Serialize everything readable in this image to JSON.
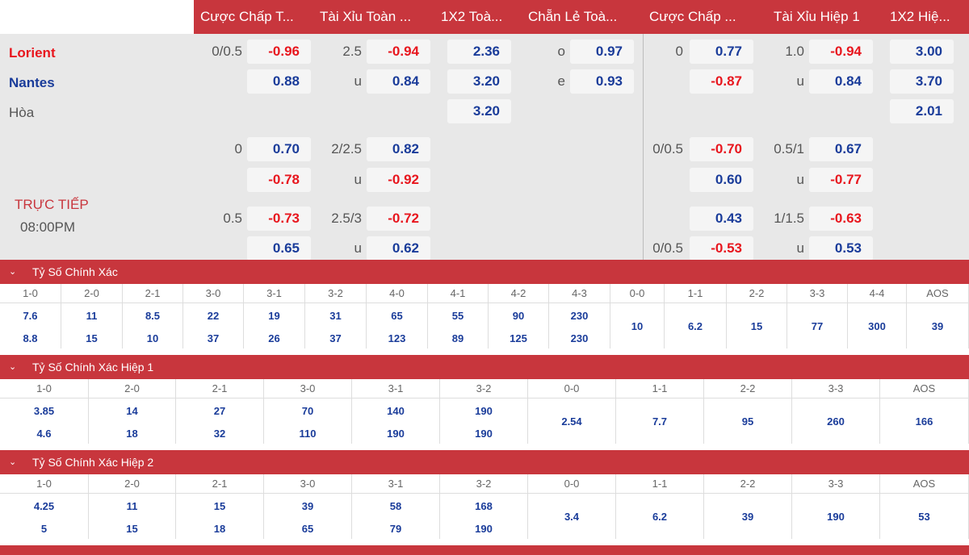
{
  "header": {
    "tabs": [
      {
        "label": "Cược Chấp T..."
      },
      {
        "label": "Tài Xỉu Toàn ..."
      },
      {
        "label": "1X2 Toà..."
      },
      {
        "label": "Chẵn Lẻ Toà..."
      },
      {
        "label": "Cược Chấp ..."
      },
      {
        "label": "Tài Xỉu Hiệp 1"
      },
      {
        "label": "1X2 Hiệ..."
      }
    ]
  },
  "match": {
    "home": "Lorient",
    "away": "Nantes",
    "draw": "Hòa",
    "status": "TRỰC TIẾP",
    "time": "08:00PM",
    "colors": {
      "home": "#e8161e",
      "away": "#1a3c9a",
      "positive": "#1a3c9a",
      "negative": "#e8161e",
      "accent": "#c8363d"
    }
  },
  "odds": {
    "ft_handicap": [
      {
        "line": "0/0.5",
        "home": "-0.96",
        "away": "0.88"
      },
      {
        "line": "0",
        "home": "0.70",
        "away": "-0.78"
      },
      {
        "line": "0.5",
        "home": "-0.73",
        "away": "0.65"
      }
    ],
    "ft_overunder": [
      {
        "line": "2.5",
        "over": "-0.94",
        "under_label": "u",
        "under": "0.84"
      },
      {
        "line": "2/2.5",
        "over": "0.82",
        "under_label": "u",
        "under": "-0.92"
      },
      {
        "line": "2.5/3",
        "over": "-0.72",
        "under_label": "u",
        "under": "0.62"
      }
    ],
    "ft_1x2": {
      "home": "2.36",
      "away": "3.20",
      "draw": "3.20"
    },
    "ft_oddeven": {
      "odd_label": "o",
      "odd": "0.97",
      "even_label": "e",
      "even": "0.93"
    },
    "h1_handicap": [
      {
        "line": "0",
        "home": "0.77",
        "away": "-0.87"
      },
      {
        "line": "0/0.5",
        "home": "-0.70",
        "away": "0.60"
      },
      {
        "line": "",
        "home": "0.43",
        "away": "-0.53",
        "away_line": "0/0.5"
      }
    ],
    "h1_overunder": [
      {
        "line": "1.0",
        "over": "-0.94",
        "under_label": "u",
        "under": "0.84"
      },
      {
        "line": "0.5/1",
        "over": "0.67",
        "under_label": "u",
        "under": "-0.77"
      },
      {
        "line": "1/1.5",
        "over": "-0.63",
        "under_label": "u",
        "under": "0.53"
      }
    ],
    "h1_1x2": {
      "home": "3.00",
      "away": "3.70",
      "draw": "2.01"
    }
  },
  "correct_score": {
    "title": "Tỷ Số Chính Xác",
    "cols": [
      {
        "h": "1-0",
        "a": "7.6",
        "b": "8.8"
      },
      {
        "h": "2-0",
        "a": "11",
        "b": "15"
      },
      {
        "h": "2-1",
        "a": "8.5",
        "b": "10"
      },
      {
        "h": "3-0",
        "a": "22",
        "b": "37"
      },
      {
        "h": "3-1",
        "a": "19",
        "b": "26"
      },
      {
        "h": "3-2",
        "a": "31",
        "b": "37"
      },
      {
        "h": "4-0",
        "a": "65",
        "b": "123"
      },
      {
        "h": "4-1",
        "a": "55",
        "b": "89"
      },
      {
        "h": "4-2",
        "a": "90",
        "b": "125"
      },
      {
        "h": "4-3",
        "a": "230",
        "b": "230"
      },
      {
        "h": "0-0",
        "a": "10"
      },
      {
        "h": "1-1",
        "a": "6.2"
      },
      {
        "h": "2-2",
        "a": "15"
      },
      {
        "h": "3-3",
        "a": "77"
      },
      {
        "h": "4-4",
        "a": "300"
      },
      {
        "h": "AOS",
        "a": "39"
      }
    ]
  },
  "correct_score_h1": {
    "title": "Tỷ Số Chính Xác Hiệp 1",
    "cols": [
      {
        "h": "1-0",
        "a": "3.85",
        "b": "4.6"
      },
      {
        "h": "2-0",
        "a": "14",
        "b": "18"
      },
      {
        "h": "2-1",
        "a": "27",
        "b": "32"
      },
      {
        "h": "3-0",
        "a": "70",
        "b": "110"
      },
      {
        "h": "3-1",
        "a": "140",
        "b": "190"
      },
      {
        "h": "3-2",
        "a": "190",
        "b": "190"
      },
      {
        "h": "0-0",
        "a": "2.54"
      },
      {
        "h": "1-1",
        "a": "7.7"
      },
      {
        "h": "2-2",
        "a": "95"
      },
      {
        "h": "3-3",
        "a": "260"
      },
      {
        "h": "AOS",
        "a": "166"
      }
    ]
  },
  "correct_score_h2": {
    "title": "Tỷ Số Chính Xác Hiệp 2",
    "cols": [
      {
        "h": "1-0",
        "a": "4.25",
        "b": "5"
      },
      {
        "h": "2-0",
        "a": "11",
        "b": "15"
      },
      {
        "h": "2-1",
        "a": "15",
        "b": "18"
      },
      {
        "h": "3-0",
        "a": "39",
        "b": "65"
      },
      {
        "h": "3-1",
        "a": "58",
        "b": "79"
      },
      {
        "h": "3-2",
        "a": "168",
        "b": "190"
      },
      {
        "h": "0-0",
        "a": "3.4"
      },
      {
        "h": "1-1",
        "a": "6.2"
      },
      {
        "h": "2-2",
        "a": "39"
      },
      {
        "h": "3-3",
        "a": "190"
      },
      {
        "h": "AOS",
        "a": "53"
      }
    ]
  }
}
